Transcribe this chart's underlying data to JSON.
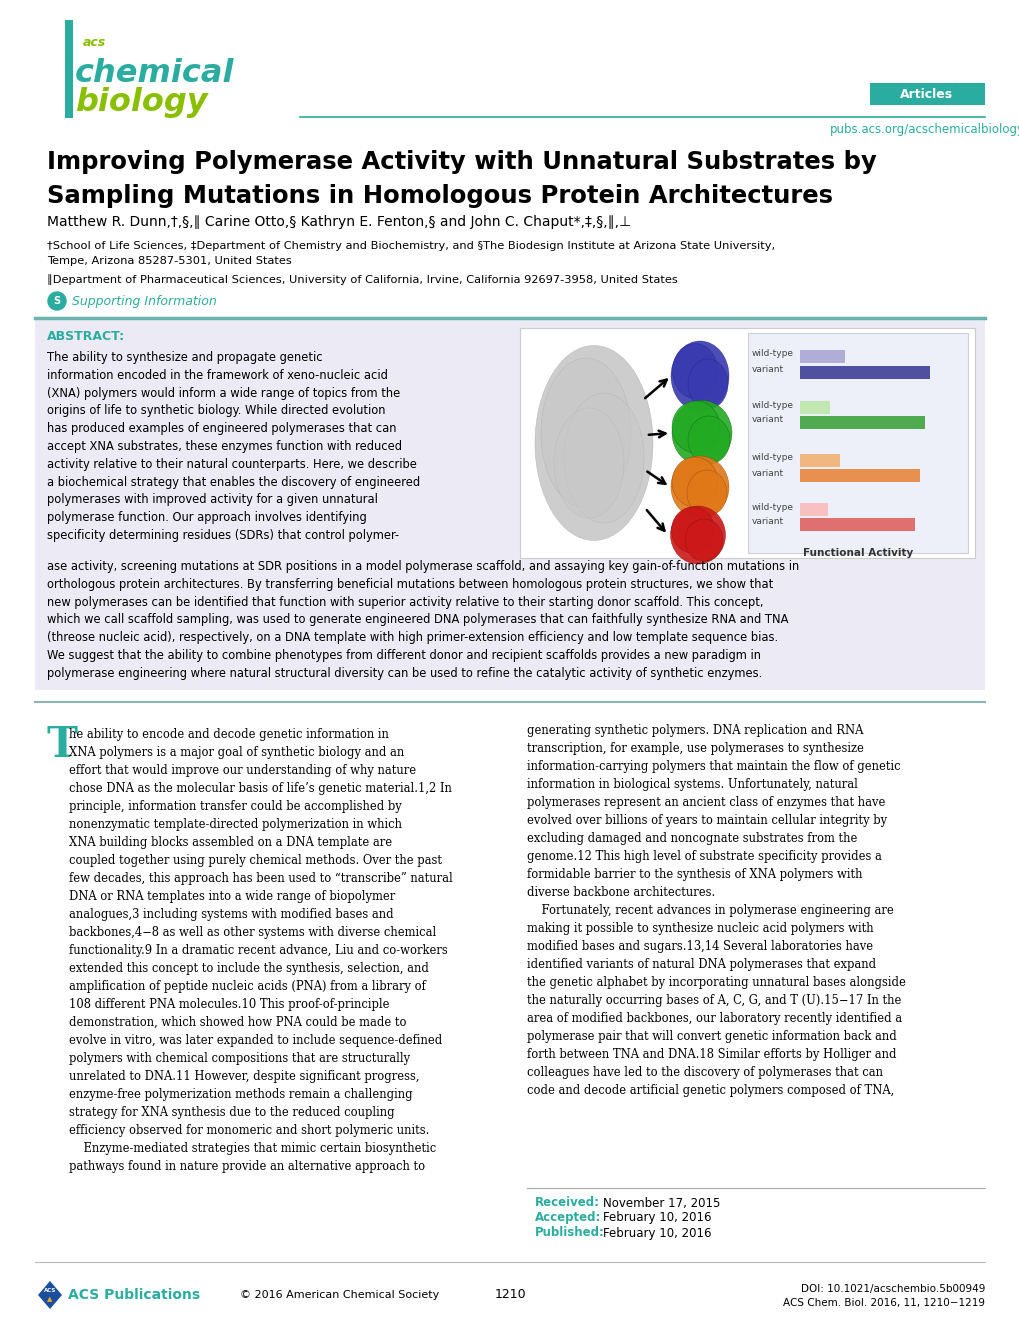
{
  "title_line1": "Improving Polymerase Activity with Unnatural Substrates by",
  "title_line2": "Sampling Mutations in Homologous Protein Architectures",
  "authors": "Matthew R. Dunn,†,§,∥ Carine Otto,§ Kathryn E. Fenton,§ and John C. Chaput*,‡,§,∥,⊥",
  "affil1": "†School of Life Sciences, ‡Department of Chemistry and Biochemistry, and §The Biodesign Institute at Arizona State University,",
  "affil2": "Tempe, Arizona 85287-5301, United States",
  "affil3": "∥Department of Pharmaceutical Sciences, University of California, Irvine, California 92697-3958, United States",
  "abstract_label": "ABSTRACT:",
  "received_label": "Received:",
  "received_date": "  November 17, 2015",
  "accepted_label": "Accepted:",
  "accepted_date": "  February 10, 2016",
  "published_label": "Published:",
  "published_date": "  February 10, 2016",
  "doi": "DOI: 10.1021/acschembio.5b00949",
  "journal": "ACS Chem. Biol. 2016, 11, 1210−1219",
  "page_num": "1210",
  "copyright": "© 2016 American Chemical Society",
  "teal_color": "#2aada0",
  "green_color": "#8abf00",
  "articles_color": "#2aada0",
  "abstract_bg": "#eceaf4",
  "abstract_border_top": "#6ab4b0",
  "bar_bg": "#edf0f8",
  "bar_wt_blue": "#b0aed8",
  "bar_var_blue": "#5050a0",
  "bar_wt_green": "#c0e8b0",
  "bar_var_green": "#50aa50",
  "bar_wt_orange": "#f8d8b8",
  "bar_wt_orange2": "#f0b880",
  "bar_var_orange": "#e89050",
  "bar_wt_red": "#f8c0c0",
  "bar_var_red": "#e07070",
  "functional_activity_label": "Functional Activity"
}
